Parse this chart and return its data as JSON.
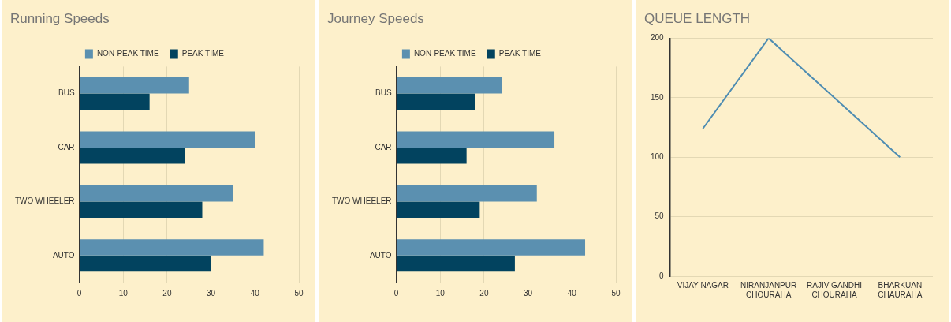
{
  "chart_data": [
    {
      "type": "bar",
      "title": "Running Speeds",
      "orientation": "horizontal",
      "categories": [
        "BUS",
        "CAR",
        "TWO WHEELER",
        "AUTO"
      ],
      "series": [
        {
          "name": "NON-PEAK TIME",
          "color": "#5b90b0",
          "values": [
            25,
            40,
            35,
            42
          ]
        },
        {
          "name": "PEAK TIME",
          "color": "#02435f",
          "values": [
            16,
            24,
            28,
            30
          ]
        }
      ],
      "xlim": [
        0,
        50
      ],
      "xticks": [
        0,
        10,
        20,
        30,
        40,
        50
      ],
      "grid": "x",
      "legend": "top"
    },
    {
      "type": "bar",
      "title": "Journey Speeds",
      "orientation": "horizontal",
      "categories": [
        "BUS",
        "CAR",
        "TWO WHEELER",
        "AUTO"
      ],
      "series": [
        {
          "name": "NON-PEAK TIME",
          "color": "#5b90b0",
          "values": [
            24,
            36,
            32,
            43
          ]
        },
        {
          "name": "PEAK TIME",
          "color": "#02435f",
          "values": [
            18,
            16,
            19,
            27
          ]
        }
      ],
      "xlim": [
        0,
        50
      ],
      "xticks": [
        0,
        10,
        20,
        30,
        40,
        50
      ],
      "grid": "x",
      "legend": "top"
    },
    {
      "type": "line",
      "title": "QUEUE LENGTH",
      "categories": [
        "VIJAY NAGAR",
        "NIRANJANPUR\nCHOURAHA",
        "RAJIV GANDHI\nCHOURAHA",
        "BHARKUAN\nCHAURAHA"
      ],
      "series": [
        {
          "color": "#4f8db2",
          "values": [
            124,
            200,
            150,
            100
          ]
        }
      ],
      "ylim": [
        0,
        200
      ],
      "yticks": [
        0,
        50,
        100,
        150,
        200
      ],
      "grid": "y",
      "legend": false,
      "marker": "none"
    }
  ]
}
